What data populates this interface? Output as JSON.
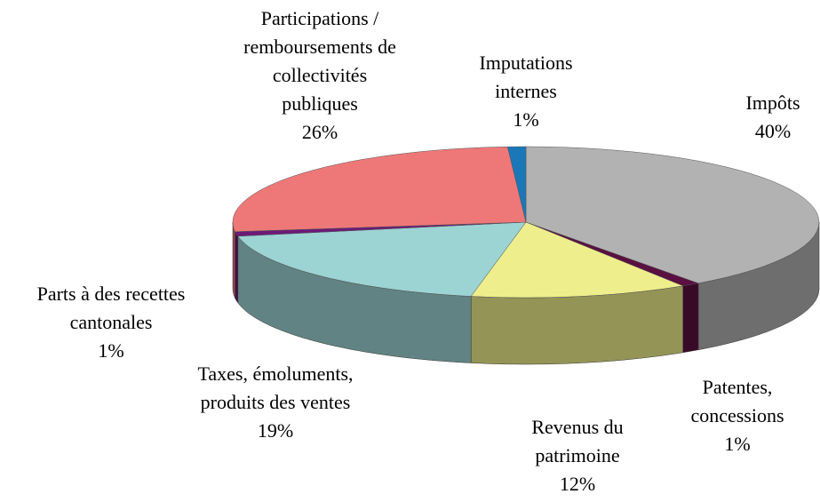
{
  "chart_data": {
    "type": "pie3d",
    "categories": [
      "Impôts",
      "Patentes, concessions",
      "Revenus du patrimoine",
      "Taxes, émoluments, produits des ventes",
      "Parts à des recettes cantonales",
      "Participations / remboursements de collectivités publiques",
      "Imputations internes"
    ],
    "values": [
      40,
      1,
      12,
      19,
      1,
      26,
      1
    ],
    "value_labels": [
      "40%",
      "1%",
      "12%",
      "19%",
      "1%",
      "26%",
      "1%"
    ],
    "colors": [
      "#b2b2b2",
      "#5a1040",
      "#eeee8c",
      "#9cd3d3",
      "#6c1a78",
      "#ee7878",
      "#1a78b8"
    ]
  }
}
